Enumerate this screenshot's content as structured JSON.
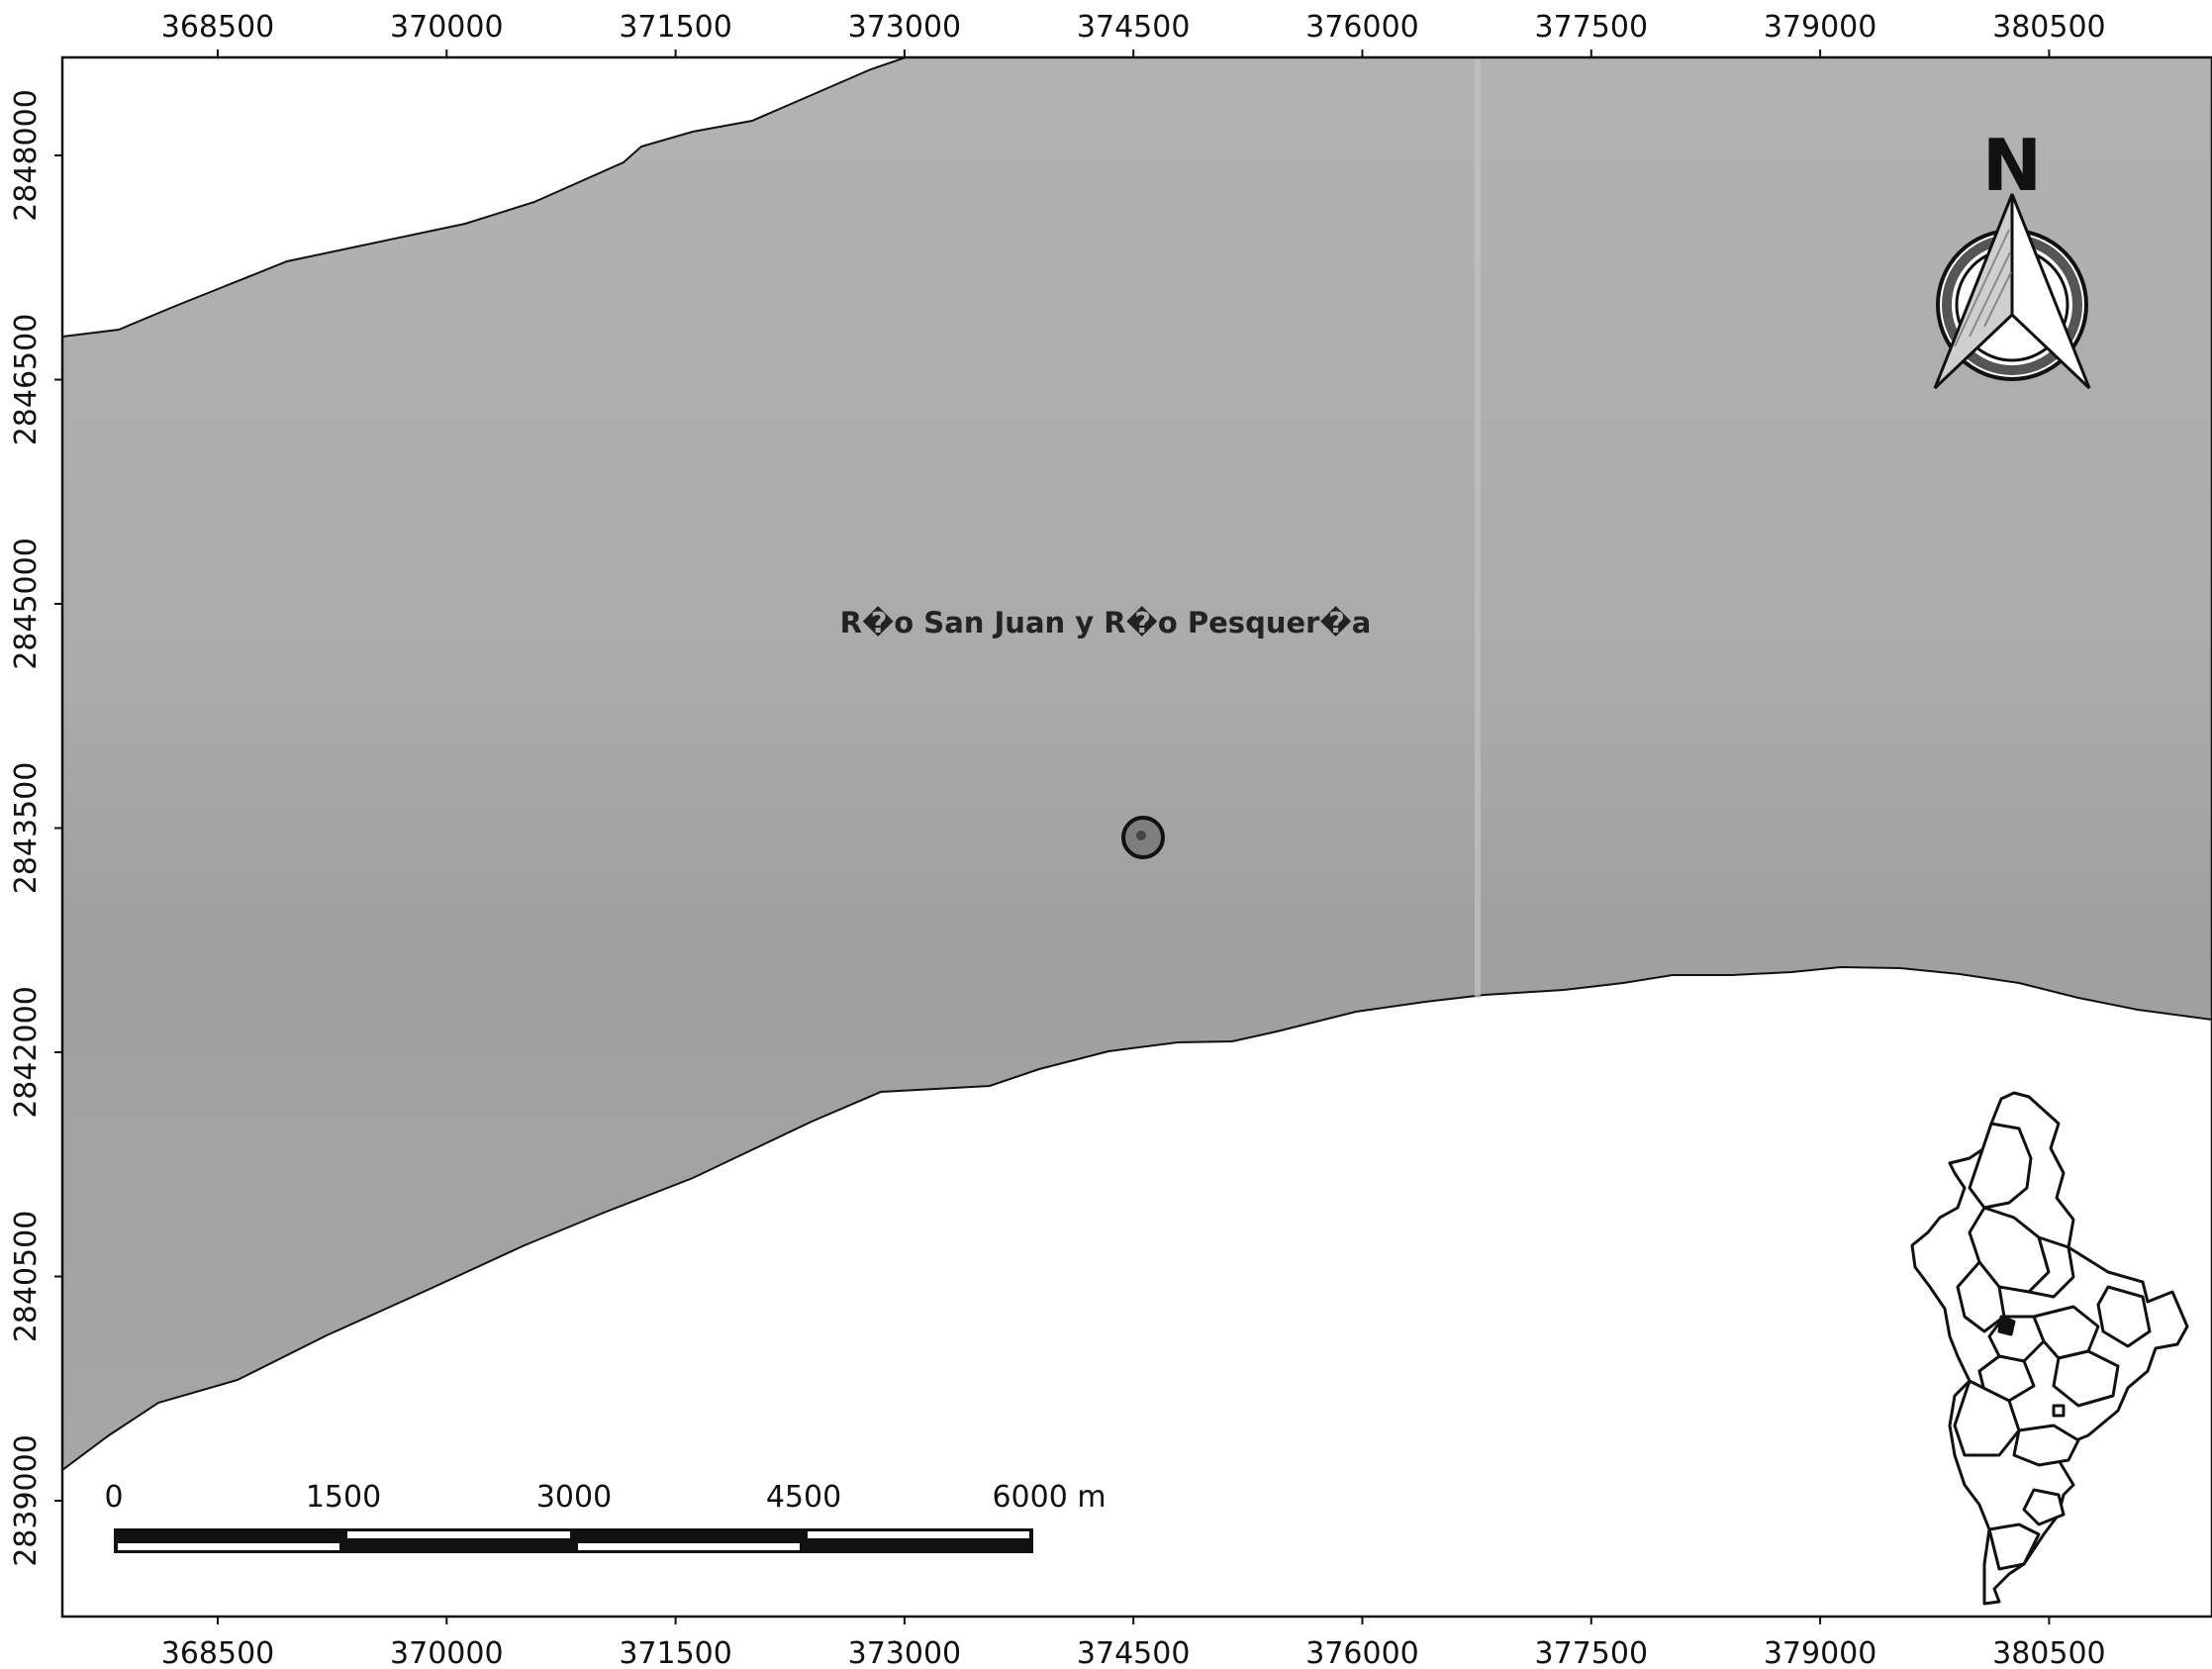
{
  "map": {
    "region_label": "R�o San Juan y R�o Pesquer�a",
    "colors": {
      "region_fill": "#a8a8a8",
      "region_fill_dark": "#9c9c9c",
      "background": "#ffffff",
      "outline": "#111111"
    }
  },
  "grid": {
    "x_ticks": [
      "368500",
      "370000",
      "371500",
      "373000",
      "374500",
      "376000",
      "377500",
      "379000",
      "380500"
    ],
    "y_ticks": [
      "2848000",
      "2846500",
      "2845000",
      "2843500",
      "2842000",
      "2840500",
      "2839000"
    ]
  },
  "north_arrow": {
    "letter": "N",
    "icon": "north-arrow-icon"
  },
  "scale_bar": {
    "labels": [
      "0",
      "1500",
      "3000",
      "4500",
      "6000 m"
    ],
    "segments": 4
  },
  "inset": {
    "icon": "state-locator-inset-map"
  }
}
